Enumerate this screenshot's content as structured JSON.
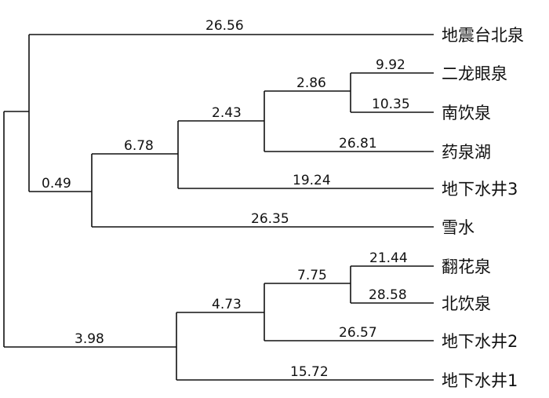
{
  "tree": {
    "leaves": [
      {
        "id": "leaf-dizhentai",
        "label": "地震台北泉"
      },
      {
        "id": "leaf-erlongyan",
        "label": "二龙眼泉"
      },
      {
        "id": "leaf-nanyin",
        "label": "南饮泉"
      },
      {
        "id": "leaf-yaoquanhu",
        "label": "药泉湖"
      },
      {
        "id": "leaf-well3",
        "label": "地下水井3"
      },
      {
        "id": "leaf-snow",
        "label": "雪水"
      },
      {
        "id": "leaf-fanhua",
        "label": "翻花泉"
      },
      {
        "id": "leaf-beiyin",
        "label": "北饮泉"
      },
      {
        "id": "leaf-well2",
        "label": "地下水井2"
      },
      {
        "id": "leaf-well1",
        "label": "地下水井1"
      }
    ],
    "branch_lengths": [
      {
        "id": "bl-dizhentai",
        "value": "26.56"
      },
      {
        "id": "bl-erlongyan",
        "value": "9.92"
      },
      {
        "id": "bl-nanyin",
        "value": "10.35"
      },
      {
        "id": "bl-cluster-a",
        "value": "2.86"
      },
      {
        "id": "bl-yaoquanhu",
        "value": "26.81"
      },
      {
        "id": "bl-cluster-b",
        "value": "2.43"
      },
      {
        "id": "bl-cluster-c",
        "value": "6.78"
      },
      {
        "id": "bl-well3",
        "value": "19.24"
      },
      {
        "id": "bl-cluster-d",
        "value": "0.49"
      },
      {
        "id": "bl-snow",
        "value": "26.35"
      },
      {
        "id": "bl-fanhua",
        "value": "21.44"
      },
      {
        "id": "bl-cluster-e",
        "value": "7.75"
      },
      {
        "id": "bl-beiyin",
        "value": "28.58"
      },
      {
        "id": "bl-cluster-f",
        "value": "4.73"
      },
      {
        "id": "bl-well2",
        "value": "26.57"
      },
      {
        "id": "bl-cluster-g",
        "value": "3.98"
      },
      {
        "id": "bl-well1",
        "value": "15.72"
      }
    ]
  }
}
